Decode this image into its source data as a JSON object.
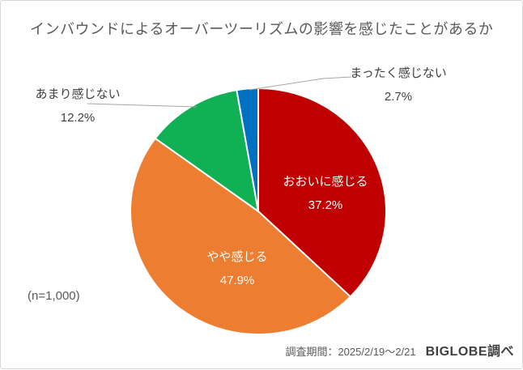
{
  "chart_data": {
    "type": "pie",
    "title": "インバウンドによるオーバーツーリズムの影響を感じたことがあるか",
    "unit": "%",
    "direction": "clockwise",
    "start_angle_deg": 0,
    "legend": "none",
    "slices": [
      {
        "label": "おおいに感じる",
        "value": 37.2,
        "pct_label": "37.2%",
        "color": "#C00000",
        "label_placement": "inside"
      },
      {
        "label": "やや感じる",
        "value": 47.9,
        "pct_label": "47.9%",
        "color": "#ED7D31",
        "label_placement": "inside"
      },
      {
        "label": "あまり感じない",
        "value": 12.2,
        "pct_label": "12.2%",
        "color": "#10B054",
        "label_placement": "outside-left"
      },
      {
        "label": "まったく感じない",
        "value": 2.7,
        "pct_label": "2.7%",
        "color": "#0070C0",
        "label_placement": "outside-right"
      }
    ]
  },
  "sample_note": "(n=1,000)",
  "footer": {
    "survey_period": "調査期間：2025/2/19～2/21",
    "source": "BIGLOBE調べ"
  },
  "colors": {
    "title_text": "#595959",
    "label_text": "#404040",
    "inside_label_text": "#FFFFFF",
    "leader_line": "#A6A6A6",
    "canvas_border": "#D9D9D9"
  }
}
